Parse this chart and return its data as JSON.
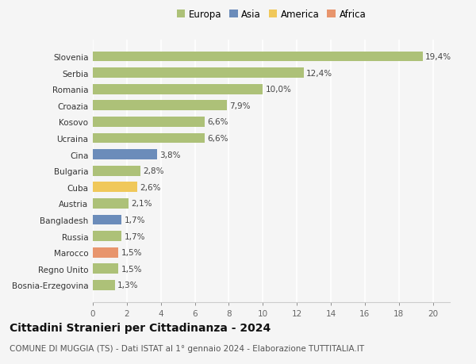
{
  "categories": [
    "Bosnia-Erzegovina",
    "Regno Unito",
    "Marocco",
    "Russia",
    "Bangladesh",
    "Austria",
    "Cuba",
    "Bulgaria",
    "Cina",
    "Ucraina",
    "Kosovo",
    "Croazia",
    "Romania",
    "Serbia",
    "Slovenia"
  ],
  "values": [
    1.3,
    1.5,
    1.5,
    1.7,
    1.7,
    2.1,
    2.6,
    2.8,
    3.8,
    6.6,
    6.6,
    7.9,
    10.0,
    12.4,
    19.4
  ],
  "labels": [
    "1,3%",
    "1,5%",
    "1,5%",
    "1,7%",
    "1,7%",
    "2,1%",
    "2,6%",
    "2,8%",
    "3,8%",
    "6,6%",
    "6,6%",
    "7,9%",
    "10,0%",
    "12,4%",
    "19,4%"
  ],
  "continents": [
    "Europa",
    "Europa",
    "Africa",
    "Europa",
    "Asia",
    "Europa",
    "America",
    "Europa",
    "Asia",
    "Europa",
    "Europa",
    "Europa",
    "Europa",
    "Europa",
    "Europa"
  ],
  "colors": {
    "Europa": "#adc178",
    "Asia": "#6b8cba",
    "America": "#f0c85a",
    "Africa": "#e8956d"
  },
  "xlim": [
    0,
    21
  ],
  "xticks": [
    0,
    2,
    4,
    6,
    8,
    10,
    12,
    14,
    16,
    18,
    20
  ],
  "title": "Cittadini Stranieri per Cittadinanza - 2024",
  "subtitle": "COMUNE DI MUGGIA (TS) - Dati ISTAT al 1° gennaio 2024 - Elaborazione TUTTITALIA.IT",
  "background_color": "#f5f5f5",
  "bar_height": 0.62,
  "title_fontsize": 10,
  "subtitle_fontsize": 7.5,
  "tick_fontsize": 7.5,
  "label_fontsize": 7.5,
  "legend_fontsize": 8.5,
  "ytick_fontsize": 7.5
}
